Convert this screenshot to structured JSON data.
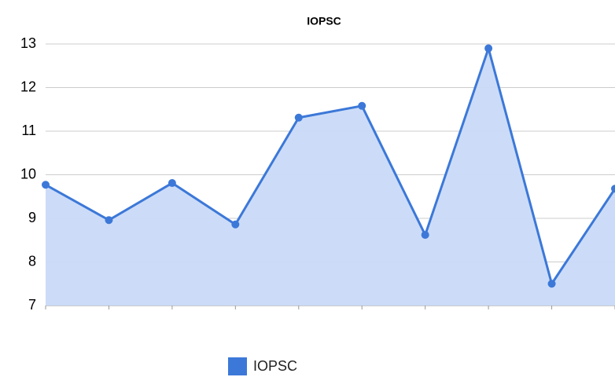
{
  "chart_data": {
    "type": "area",
    "title": "IOPSC",
    "categories": [
      null,
      null,
      null,
      null,
      null,
      null,
      null,
      null,
      null,
      null
    ],
    "series": [
      {
        "name": "IOPSC",
        "color": "#3c78d8",
        "fill": "#c9daf8",
        "values": [
          9.77,
          8.96,
          9.81,
          8.86,
          11.31,
          11.58,
          8.62,
          12.9,
          7.5,
          9.68
        ]
      }
    ],
    "ylim": [
      7,
      13
    ],
    "yticks": [
      7,
      8,
      9,
      10,
      11,
      12,
      13
    ],
    "grid": true,
    "legend": "bottom"
  }
}
